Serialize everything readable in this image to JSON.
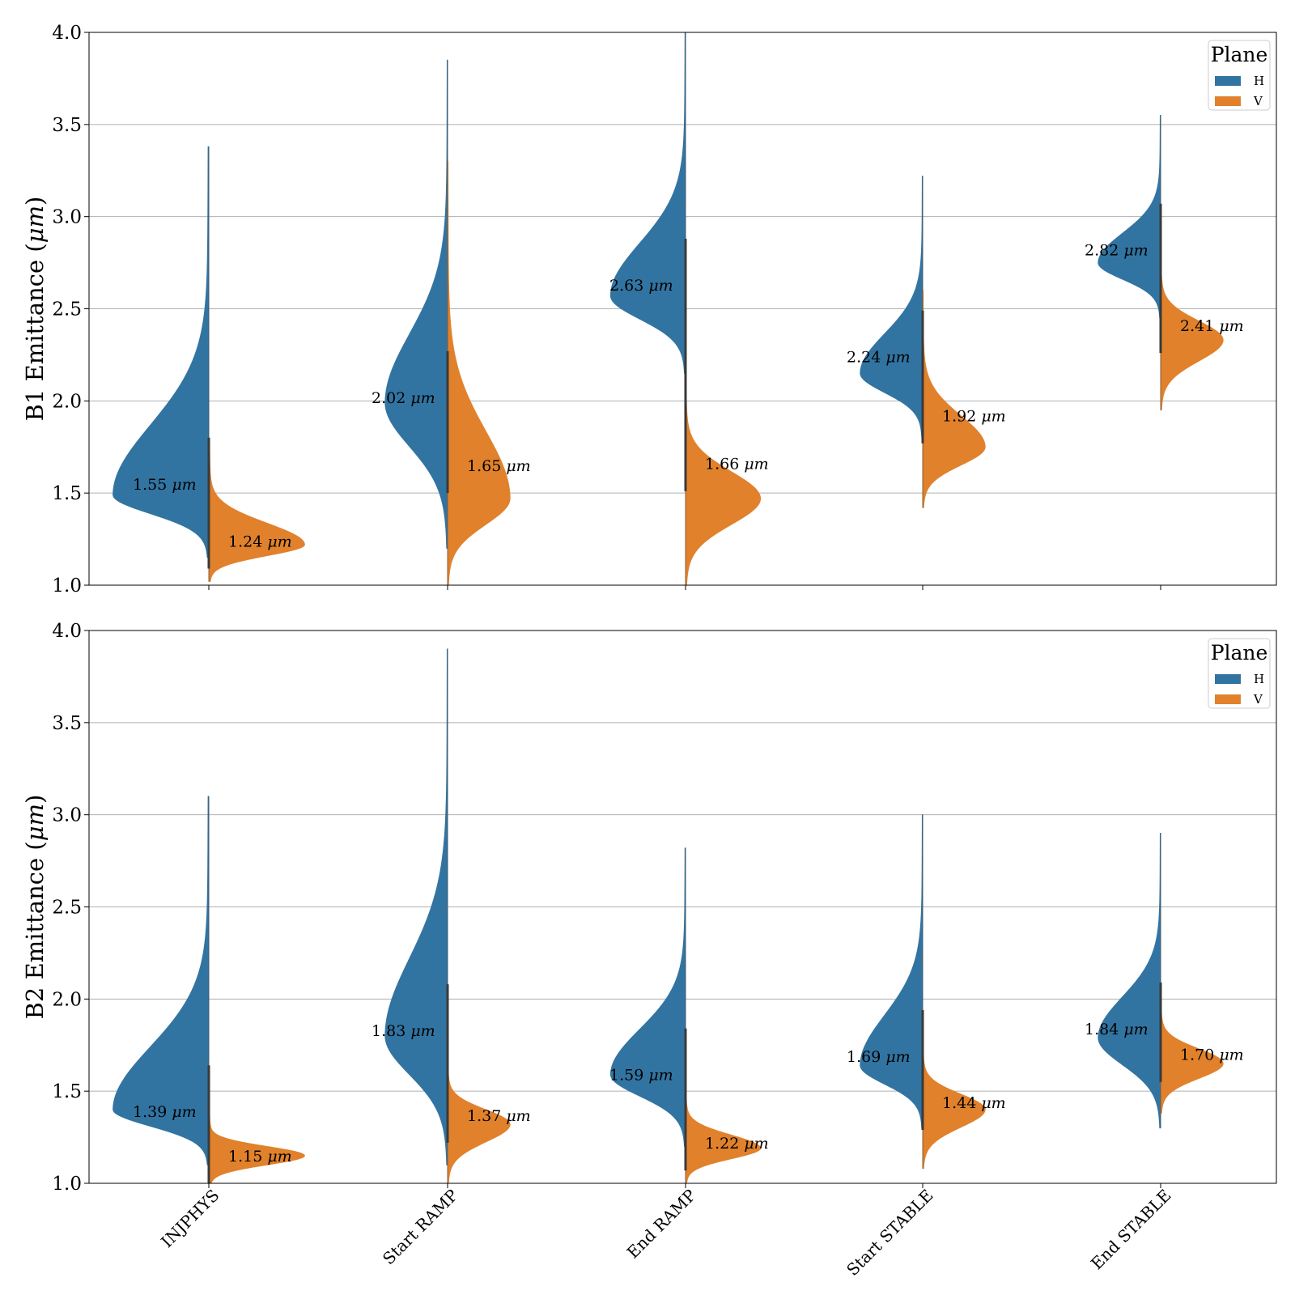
{
  "chart_data": [
    {
      "type": "violin",
      "ylabel": "B1 Emittance (",
      "ylabel_unit": "μm",
      "ylabel_close": ")",
      "ylim": [
        1.0,
        4.0
      ],
      "yticks": [
        "1.0",
        "1.5",
        "2.0",
        "2.5",
        "3.0",
        "3.5",
        "4.0"
      ],
      "grid": true,
      "split": true,
      "categories": [
        "INJPHYS",
        "Start RAMP",
        "End RAMP",
        "Start STABLE",
        "End STABLE"
      ],
      "legend": {
        "title": "Plane",
        "placement": "top-right",
        "entries": [
          "H",
          "V"
        ]
      },
      "series": [
        {
          "name": "H",
          "color": "#3274a1",
          "values": [
            1.55,
            2.02,
            2.63,
            2.24,
            2.82
          ],
          "labels": [
            "1.55",
            "2.02",
            "2.63",
            "2.24",
            "2.82"
          ],
          "mode": [
            1.49,
            1.99,
            2.57,
            2.15,
            2.75
          ],
          "range": [
            [
              1.15,
              3.38
            ],
            [
              1.2,
              3.85
            ],
            [
              2.15,
              4.0
            ],
            [
              1.8,
              3.22
            ],
            [
              2.45,
              3.55
            ]
          ]
        },
        {
          "name": "V",
          "color": "#e1812c",
          "values": [
            1.24,
            1.65,
            1.66,
            1.92,
            2.41
          ],
          "labels": [
            "1.24",
            "1.65",
            "1.66",
            "1.92",
            "2.41"
          ],
          "mode": [
            1.22,
            1.47,
            1.47,
            1.75,
            2.33
          ],
          "range": [
            [
              1.02,
              1.8
            ],
            [
              1.0,
              3.3
            ],
            [
              1.0,
              2.2
            ],
            [
              1.42,
              2.6
            ],
            [
              1.95,
              2.85
            ]
          ]
        }
      ]
    },
    {
      "type": "violin",
      "ylabel": "B2 Emittance (",
      "ylabel_unit": "μm",
      "ylabel_close": ")",
      "ylim": [
        1.0,
        4.0
      ],
      "yticks": [
        "1.0",
        "1.5",
        "2.0",
        "2.5",
        "3.0",
        "3.5",
        "4.0"
      ],
      "grid": true,
      "split": true,
      "categories": [
        "INJPHYS",
        "Start RAMP",
        "End RAMP",
        "Start STABLE",
        "End STABLE"
      ],
      "legend": {
        "title": "Plane",
        "placement": "top-right",
        "entries": [
          "H",
          "V"
        ]
      },
      "series": [
        {
          "name": "H",
          "color": "#3274a1",
          "values": [
            1.39,
            1.83,
            1.59,
            1.69,
            1.84
          ],
          "labels": [
            "1.39",
            "1.83",
            "1.59",
            "1.69",
            "1.84"
          ],
          "mode": [
            1.4,
            1.8,
            1.59,
            1.64,
            1.79
          ],
          "range": [
            [
              1.1,
              3.1
            ],
            [
              1.1,
              3.9
            ],
            [
              1.2,
              2.82
            ],
            [
              1.3,
              3.0
            ],
            [
              1.3,
              2.9
            ]
          ]
        },
        {
          "name": "V",
          "color": "#e1812c",
          "values": [
            1.15,
            1.37,
            1.22,
            1.44,
            1.7
          ],
          "labels": [
            "1.15",
            "1.37",
            "1.22",
            "1.44",
            "1.70"
          ],
          "mode": [
            1.15,
            1.32,
            1.19,
            1.4,
            1.65
          ],
          "range": [
            [
              1.0,
              1.4
            ],
            [
              1.0,
              1.72
            ],
            [
              1.0,
              1.55
            ],
            [
              1.08,
              1.82
            ],
            [
              1.38,
              2.05
            ]
          ]
        }
      ]
    }
  ]
}
